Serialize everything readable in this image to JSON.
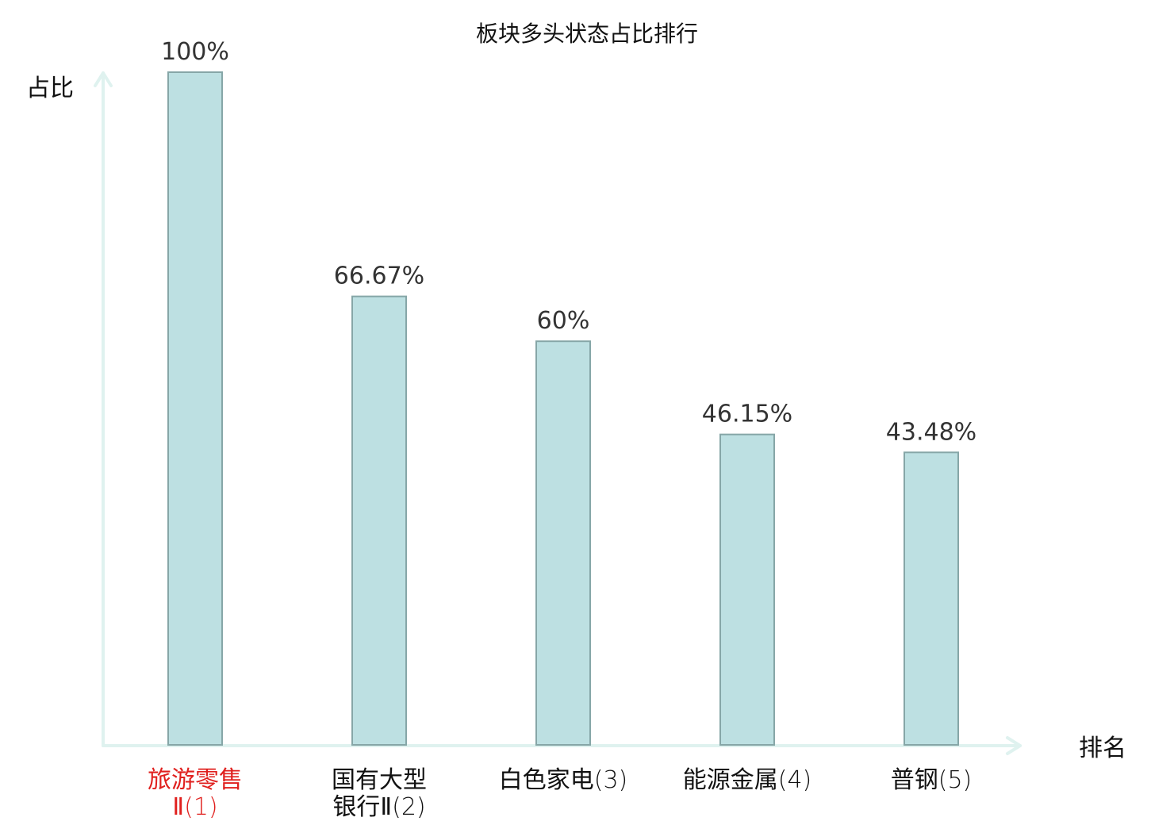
{
  "chart_data": {
    "type": "bar",
    "title": "板块多头状态占比排行",
    "xlabel": "排名",
    "ylabel": "占比",
    "ylim": [
      0,
      100
    ],
    "grid": false,
    "categories": [
      {
        "lines": [
          "旅游零售",
          "Ⅱ(1)"
        ],
        "highlight": true
      },
      {
        "lines": [
          "国有大型",
          "银行Ⅱ(2)"
        ],
        "highlight": false
      },
      {
        "lines": [
          "白色家电(3)"
        ],
        "highlight": false
      },
      {
        "lines": [
          "能源金属(4)"
        ],
        "highlight": false
      },
      {
        "lines": [
          "普钢(5)"
        ],
        "highlight": false
      }
    ],
    "values": [
      100,
      66.67,
      60,
      46.15,
      43.48
    ],
    "value_labels": [
      "100%",
      "66.67%",
      "60%",
      "46.15%",
      "43.48%"
    ]
  },
  "colors": {
    "bar_fill": "#bde0e2",
    "bar_stroke": "#86a6a7",
    "axis": "#dff2ef",
    "highlight_text": "#e0201e",
    "normal_text": "#111111"
  }
}
